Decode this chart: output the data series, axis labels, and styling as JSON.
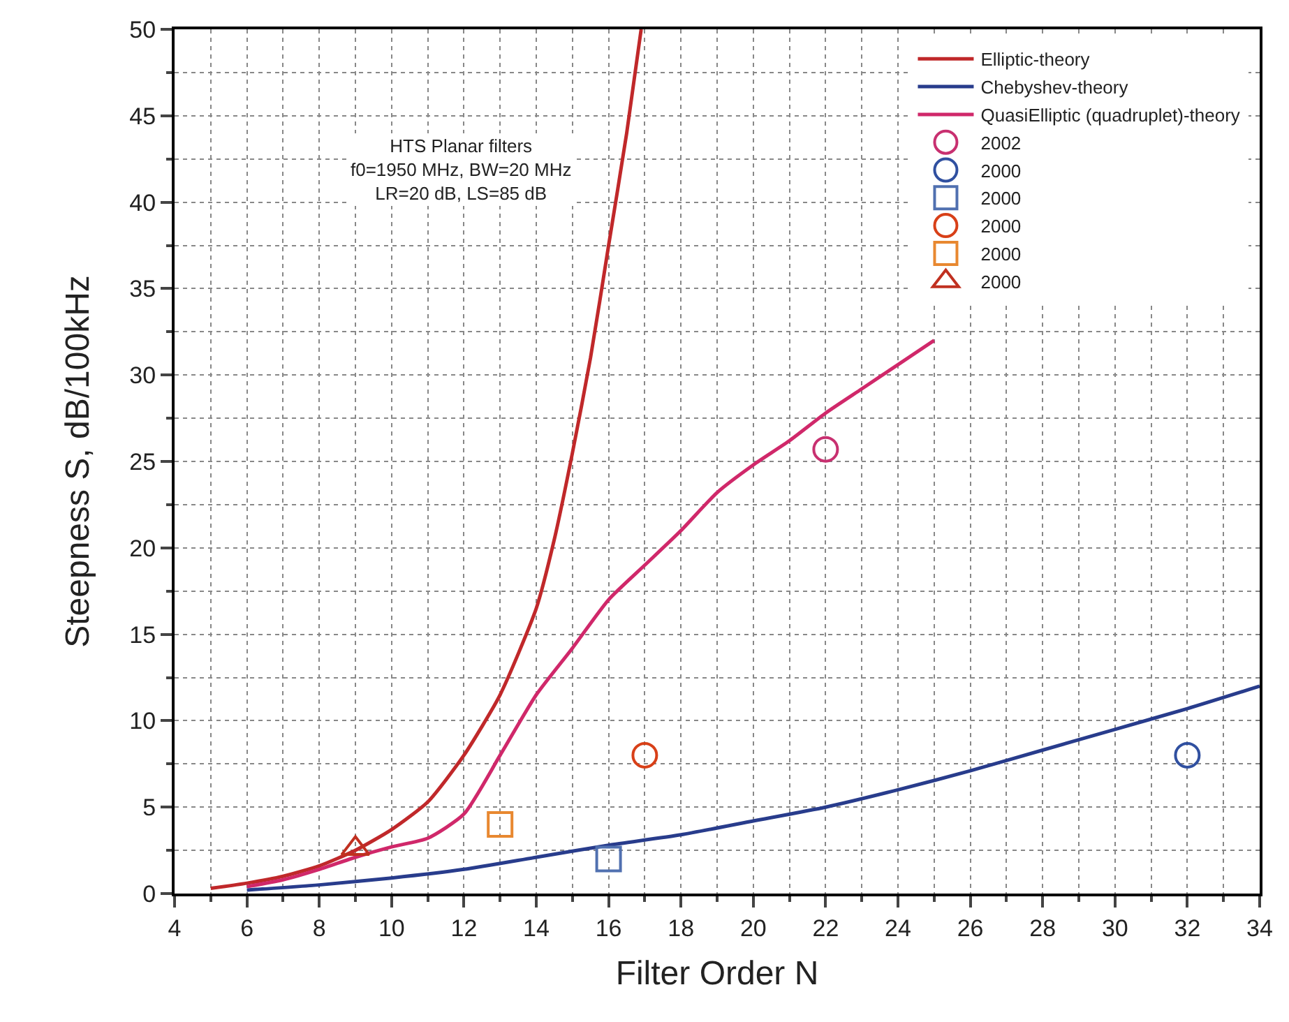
{
  "chart_data": {
    "type": "line",
    "xlabel": "Filter Order N",
    "ylabel": "Steepness S, dB/100kHz",
    "xlim": [
      4,
      34
    ],
    "xticks": [
      4,
      6,
      8,
      10,
      12,
      14,
      16,
      18,
      20,
      22,
      24,
      26,
      28,
      30,
      32,
      34
    ],
    "ylim": [
      0,
      50
    ],
    "yticks": [
      0,
      5,
      10,
      15,
      20,
      25,
      30,
      35,
      40,
      45,
      50
    ],
    "grid": true,
    "legend": "top right",
    "line_style": "solid",
    "annotations": [
      "HTS Planar filters\nf0=1950 MHz, BW=20 MHz\nLR=20 dB, LS=85 dB"
    ],
    "series": [
      {
        "name": "Elliptic-theory",
        "color": "#c0282a",
        "marker": "none",
        "x": [
          5,
          6,
          7,
          8,
          9,
          10,
          11,
          12,
          13,
          14,
          14.5,
          15,
          15.5,
          16,
          16.5,
          16.9
        ],
        "values": [
          0.3,
          0.6,
          1.0,
          1.6,
          2.5,
          3.7,
          5.3,
          8.0,
          11.5,
          16.5,
          20.5,
          25.5,
          31,
          37.5,
          44,
          50
        ]
      },
      {
        "name": "Chebyshev-theory",
        "color": "#283c8c",
        "marker": "none",
        "x": [
          6,
          8,
          10,
          12,
          14,
          16,
          18,
          20,
          22,
          24,
          26,
          28,
          30,
          32,
          34
        ],
        "values": [
          0.2,
          0.5,
          0.9,
          1.4,
          2.1,
          2.8,
          3.4,
          4.2,
          5.0,
          6.0,
          7.1,
          8.3,
          9.5,
          10.7,
          12
        ]
      },
      {
        "name": "QuasiElliptic (quadruplet)-theory",
        "color": "#d0286a",
        "marker": "none",
        "x": [
          6,
          7,
          8,
          9,
          10,
          11,
          12,
          13,
          14,
          15,
          16,
          17,
          18,
          19,
          20,
          21,
          22,
          23,
          24,
          25
        ],
        "values": [
          0.4,
          0.8,
          1.4,
          2.1,
          2.7,
          3.2,
          4.6,
          8,
          11.5,
          14.2,
          17,
          19,
          21,
          23.2,
          24.8,
          26.2,
          27.8,
          29.2,
          30.6,
          32
        ]
      },
      {
        "name": "2002",
        "color": "#c83070",
        "type": "scatter",
        "marker": "circle",
        "x": [
          22
        ],
        "values": [
          25.7
        ]
      },
      {
        "name": "2000",
        "color": "#3050a0",
        "type": "scatter",
        "marker": "circle",
        "x": [
          32
        ],
        "values": [
          8
        ]
      },
      {
        "name": "2000",
        "color": "#5070b0",
        "type": "scatter",
        "marker": "square",
        "x": [
          16
        ],
        "values": [
          2
        ]
      },
      {
        "name": "2000",
        "color": "#d84018",
        "type": "scatter",
        "marker": "circle",
        "x": [
          17
        ],
        "values": [
          8
        ]
      },
      {
        "name": "2000",
        "color": "#e88830",
        "type": "scatter",
        "marker": "square",
        "x": [
          13
        ],
        "values": [
          4
        ]
      },
      {
        "name": "2000",
        "color": "#c03020",
        "type": "scatter",
        "marker": "triangle",
        "x": [
          9
        ],
        "values": [
          2.6
        ]
      }
    ]
  }
}
